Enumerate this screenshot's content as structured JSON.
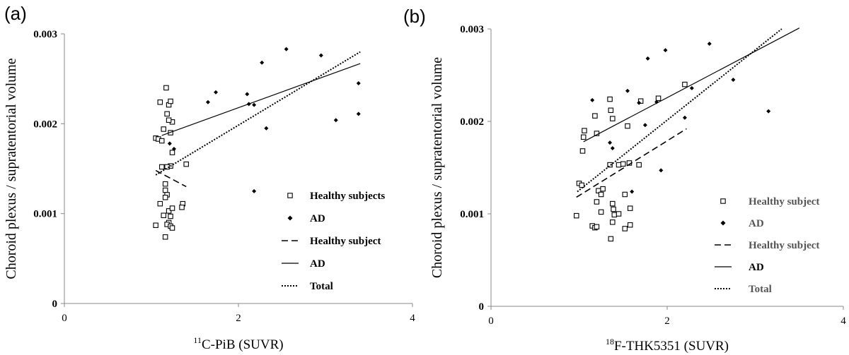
{
  "chart_data": [
    {
      "panel_label": "(a)",
      "type": "scatter",
      "xlabel_sup": "11",
      "xlabel": "C-PiB (SUVR)",
      "ylabel": "Choroid plexus / supratentorial volume",
      "xlim": [
        0,
        4
      ],
      "ylim": [
        0,
        0.003
      ],
      "x_ticks": [
        "0",
        "2",
        "4"
      ],
      "y_ticks": [
        "0",
        "0.001",
        "0.002",
        "0.003"
      ],
      "series": [
        {
          "name": "Healthy subjects",
          "kind": "scatter",
          "marker": "open-square",
          "points": [
            [
              1.05,
              0.00184
            ],
            [
              1.08,
              0.00183
            ],
            [
              1.12,
              0.00181
            ],
            [
              1.1,
              0.00224
            ],
            [
              1.14,
              0.00194
            ],
            [
              1.17,
              0.0024
            ],
            [
              1.18,
              0.00211
            ],
            [
              1.2,
              0.00221
            ],
            [
              1.22,
              0.00225
            ],
            [
              1.24,
              0.00202
            ],
            [
              1.22,
              0.0019
            ],
            [
              1.2,
              0.00204
            ],
            [
              1.24,
              0.00168
            ],
            [
              1.22,
              0.00153
            ],
            [
              1.18,
              0.00152
            ],
            [
              1.12,
              0.00152
            ],
            [
              1.16,
              0.00133
            ],
            [
              1.16,
              0.00126
            ],
            [
              1.18,
              0.00121
            ],
            [
              1.16,
              0.00118
            ],
            [
              1.1,
              0.00111
            ],
            [
              1.2,
              0.00103
            ],
            [
              1.24,
              0.00106
            ],
            [
              1.14,
              0.00098
            ],
            [
              1.2,
              0.0009
            ],
            [
              1.18,
              0.00088
            ],
            [
              1.22,
              0.00086
            ],
            [
              1.24,
              0.00084
            ],
            [
              1.05,
              0.00087
            ],
            [
              1.16,
              0.00074
            ],
            [
              1.4,
              0.00155
            ],
            [
              1.36,
              0.00111
            ],
            [
              1.35,
              0.00107
            ],
            [
              1.22,
              0.00097
            ]
          ]
        },
        {
          "name": "AD",
          "kind": "scatter",
          "marker": "filled-diamond",
          "points": [
            [
              1.21,
              0.00178
            ],
            [
              1.26,
              0.00172
            ],
            [
              1.65,
              0.00224
            ],
            [
              1.74,
              0.00235
            ],
            [
              2.1,
              0.00233
            ],
            [
              2.12,
              0.00222
            ],
            [
              2.18,
              0.00221
            ],
            [
              2.27,
              0.00268
            ],
            [
              2.32,
              0.00195
            ],
            [
              2.18,
              0.00125
            ],
            [
              2.55,
              0.00283
            ],
            [
              2.95,
              0.00276
            ],
            [
              3.12,
              0.00204
            ],
            [
              3.38,
              0.00245
            ],
            [
              3.38,
              0.00211
            ]
          ]
        },
        {
          "name": "Healthy subject",
          "kind": "line",
          "dash": "dashed",
          "points": [
            [
              1.05,
              0.00148
            ],
            [
              1.4,
              0.0013
            ]
          ]
        },
        {
          "name": "AD",
          "kind": "line",
          "dash": "solid",
          "points": [
            [
              1.12,
              0.00187
            ],
            [
              3.4,
              0.00267
            ]
          ]
        },
        {
          "name": "Total",
          "kind": "line",
          "dash": "dotted",
          "points": [
            [
              1.05,
              0.00143
            ],
            [
              3.4,
              0.0028
            ]
          ]
        }
      ],
      "legend": [
        {
          "label": "Healthy subjects",
          "symbol": "open-square"
        },
        {
          "label": "AD",
          "symbol": "filled-diamond"
        },
        {
          "label": "Healthy subject",
          "symbol": "dashed"
        },
        {
          "label": "AD",
          "symbol": "solid"
        },
        {
          "label": "Total",
          "symbol": "dotted"
        }
      ],
      "legend_position": "bottom-right",
      "grid": false
    },
    {
      "panel_label": "(b)",
      "type": "scatter",
      "xlabel_sup": "18",
      "xlabel": "F-THK5351 (SUVR)",
      "ylabel": "Choroid plexus / supratentorial volume",
      "xlim": [
        0,
        4
      ],
      "ylim": [
        0,
        0.003
      ],
      "x_ticks": [
        "0",
        "2",
        "4"
      ],
      "y_ticks": [
        "0",
        "0.001",
        "0.002",
        "0.003"
      ],
      "series": [
        {
          "name": "Healthy subject",
          "kind": "scatter",
          "marker": "open-square",
          "points": [
            [
              0.97,
              0.00098
            ],
            [
              1.0,
              0.00133
            ],
            [
              1.03,
              0.00131
            ],
            [
              1.04,
              0.00168
            ],
            [
              1.05,
              0.00183
            ],
            [
              1.06,
              0.0019
            ],
            [
              1.18,
              0.00206
            ],
            [
              1.2,
              0.00187
            ],
            [
              1.2,
              0.00113
            ],
            [
              1.22,
              0.00125
            ],
            [
              1.25,
              0.00121
            ],
            [
              1.27,
              0.00127
            ],
            [
              1.15,
              0.00087
            ],
            [
              1.18,
              0.00085
            ],
            [
              1.2,
              0.00086
            ],
            [
              1.25,
              0.00102
            ],
            [
              1.35,
              0.00224
            ],
            [
              1.36,
              0.00212
            ],
            [
              1.38,
              0.00203
            ],
            [
              1.35,
              0.00153
            ],
            [
              1.38,
              0.00111
            ],
            [
              1.39,
              0.00105
            ],
            [
              1.4,
              0.00099
            ],
            [
              1.38,
              0.00091
            ],
            [
              1.36,
              0.00073
            ],
            [
              1.45,
              0.00153
            ],
            [
              1.45,
              0.001
            ],
            [
              1.5,
              0.00154
            ],
            [
              1.52,
              0.00121
            ],
            [
              1.52,
              0.00084
            ],
            [
              1.55,
              0.00195
            ],
            [
              1.57,
              0.00155
            ],
            [
              1.58,
              0.00088
            ],
            [
              1.58,
              0.00106
            ],
            [
              1.68,
              0.00153
            ],
            [
              1.7,
              0.00222
            ],
            [
              1.9,
              0.00225
            ],
            [
              2.2,
              0.0024
            ]
          ]
        },
        {
          "name": "AD",
          "kind": "scatter",
          "marker": "filled-diamond",
          "points": [
            [
              1.15,
              0.00223
            ],
            [
              1.35,
              0.00177
            ],
            [
              1.38,
              0.00171
            ],
            [
              1.55,
              0.00233
            ],
            [
              1.6,
              0.00124
            ],
            [
              1.68,
              0.0022
            ],
            [
              1.75,
              0.00196
            ],
            [
              1.78,
              0.00268
            ],
            [
              1.88,
              0.00221
            ],
            [
              1.93,
              0.00147
            ],
            [
              1.98,
              0.00277
            ],
            [
              2.2,
              0.00204
            ],
            [
              2.28,
              0.00236
            ],
            [
              2.48,
              0.00284
            ],
            [
              2.75,
              0.00245
            ],
            [
              3.15,
              0.00211
            ]
          ]
        },
        {
          "name": "Healthy subject",
          "kind": "line",
          "dash": "dashed",
          "points": [
            [
              0.97,
              0.00118
            ],
            [
              2.22,
              0.00192
            ]
          ]
        },
        {
          "name": "AD",
          "kind": "line",
          "dash": "solid",
          "points": [
            [
              1.05,
              0.00178
            ],
            [
              3.5,
              0.00301
            ]
          ]
        },
        {
          "name": "Total",
          "kind": "line",
          "dash": "dotted",
          "points": [
            [
              0.98,
              0.00124
            ],
            [
              3.3,
              0.003
            ]
          ]
        }
      ],
      "legend": [
        {
          "label": "Healthy subject",
          "symbol": "open-square",
          "grey": true
        },
        {
          "label": "AD",
          "symbol": "filled-diamond",
          "grey": true
        },
        {
          "label": "Healthy subject",
          "symbol": "dashed",
          "grey": true
        },
        {
          "label": "AD",
          "symbol": "solid",
          "grey": false
        },
        {
          "label": "Total",
          "symbol": "dotted",
          "grey": true
        }
      ],
      "legend_position": "bottom-right",
      "grid": false
    }
  ]
}
